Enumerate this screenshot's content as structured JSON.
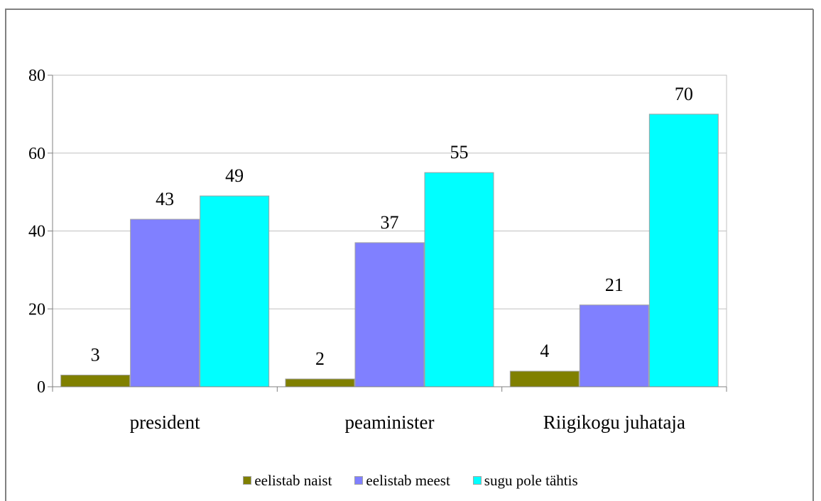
{
  "chart_data": {
    "type": "bar",
    "categories": [
      "president",
      "peaminister",
      "Riigikogu juhataja"
    ],
    "series": [
      {
        "name": "eelistab naist",
        "values": [
          3,
          2,
          4
        ],
        "color": "#808000"
      },
      {
        "name": "eelistab meest",
        "values": [
          43,
          37,
          21
        ],
        "color": "#8080ff"
      },
      {
        "name": "sugu pole tähtis",
        "values": [
          49,
          55,
          70
        ],
        "color": "#00ffff"
      }
    ],
    "yticks": [
      0,
      20,
      40,
      60,
      80
    ],
    "ylim": [
      0,
      80
    ],
    "grid": true,
    "legend_position": "bottom"
  }
}
